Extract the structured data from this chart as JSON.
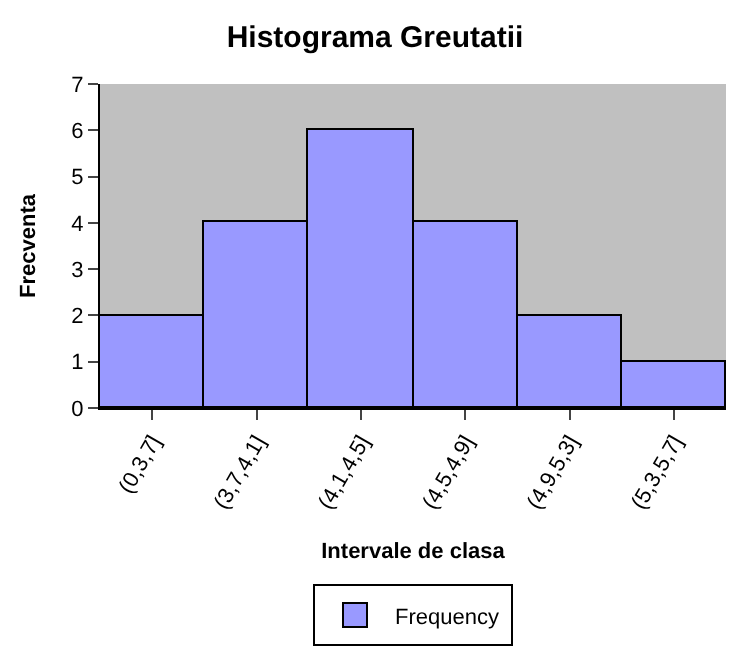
{
  "chart_data": {
    "type": "bar",
    "title": "Histograma Greutatii",
    "xlabel": "Intervale de clasa",
    "ylabel": "Frecventa",
    "categories": [
      "(0,3,7]",
      "(3,7,4,1]",
      "(4,1,4,5]",
      "(4,5,4,9]",
      "(4,9,5,3]",
      "(5,3,5,7]"
    ],
    "series": [
      {
        "name": "Frequency",
        "color": "#9999ff",
        "values": [
          2,
          4,
          6,
          4,
          2,
          1
        ]
      }
    ],
    "ylim": [
      0,
      7
    ],
    "yticks": [
      0,
      1,
      2,
      3,
      4,
      5,
      6,
      7
    ],
    "grid": false,
    "legend": "bottom"
  }
}
